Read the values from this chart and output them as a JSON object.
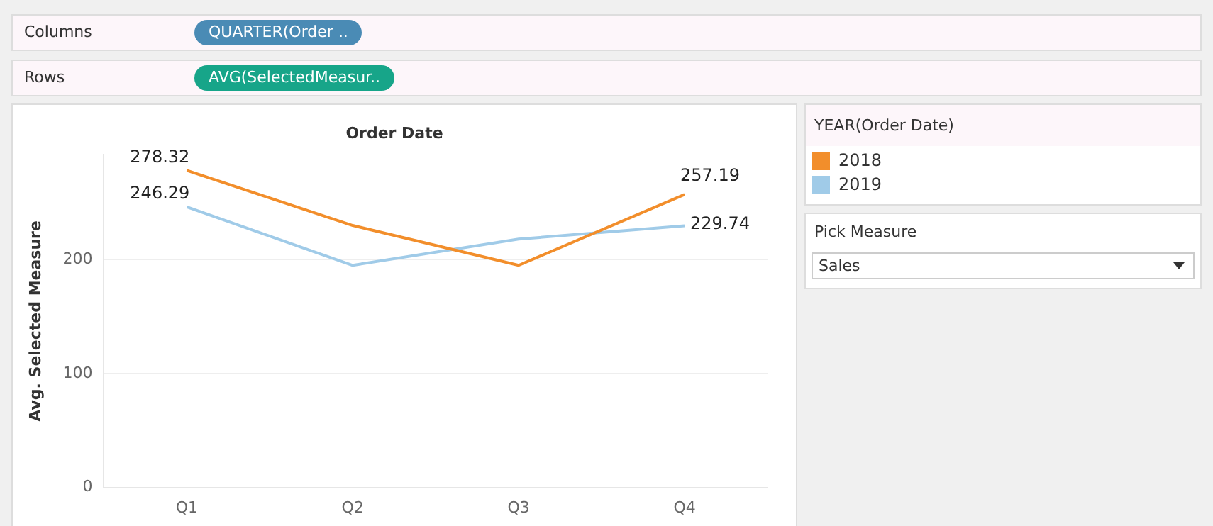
{
  "chart_data": {
    "type": "line",
    "title": "Order Date",
    "ylabel": "Avg. Selected Measure",
    "legend_title": "YEAR(Order Date)",
    "categories": [
      "Q1",
      "Q2",
      "Q3",
      "Q4"
    ],
    "series": [
      {
        "name": "2018",
        "color": "#f28e2b",
        "values": [
          278.32,
          230,
          195,
          257.19
        ],
        "value_labels": [
          "278.32",
          null,
          null,
          "257.19"
        ]
      },
      {
        "name": "2019",
        "color": "#a0cbe8",
        "values": [
          246.29,
          195,
          218,
          229.74
        ],
        "value_labels": [
          "246.29",
          null,
          null,
          "229.74"
        ]
      }
    ],
    "ylim": [
      0,
      292
    ],
    "yticks": [
      0,
      100,
      200
    ],
    "grid": "y",
    "legend": "right",
    "marker": "none",
    "line_style": "solid",
    "annotations": [
      "Columns",
      "QUARTER(Order ..",
      "Rows",
      "AVG(SelectedMeasur..",
      "Pick Measure",
      "Sales"
    ]
  }
}
